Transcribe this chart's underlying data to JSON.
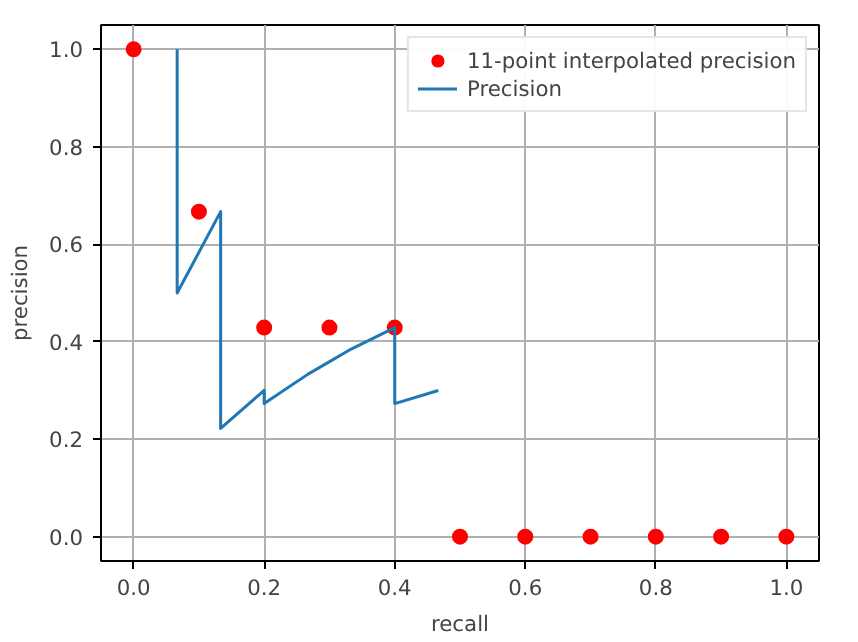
{
  "chart_data": {
    "type": "scatter",
    "xlabel": "recall",
    "ylabel": "precision",
    "series": [
      {
        "name": "11-point interpolated precision",
        "color": "#ff0000",
        "x": [
          0.0,
          0.1,
          0.2,
          0.3,
          0.4,
          0.5,
          0.6,
          0.7,
          0.8,
          0.9,
          1.0
        ],
        "values": [
          1.0,
          0.667,
          0.429,
          0.429,
          0.429,
          0,
          0,
          0,
          0,
          0,
          0
        ]
      },
      {
        "name": "Precision",
        "type": "line",
        "color": "#1f77b4",
        "x": [
          0.0667,
          0.0667,
          0.1333,
          0.1333,
          0.2,
          0.2,
          0.2667,
          0.3333,
          0.4,
          0.4,
          0.4667
        ],
        "values": [
          1.0,
          0.5,
          0.667,
          0.222,
          0.3,
          0.273,
          0.333,
          0.385,
          0.429,
          0.273,
          0.3
        ]
      }
    ],
    "xlim": [
      -0.05,
      1.05
    ],
    "ylim": [
      -0.05,
      1.05
    ],
    "xticks": [
      {
        "value": 0,
        "label": "0.0"
      },
      0.2,
      0.4,
      0.6,
      0.8,
      {
        "value": 1,
        "label": "1.0"
      }
    ],
    "yticks": [
      {
        "value": 0,
        "label": "0.0"
      },
      0.2,
      0.4,
      0.6,
      0.8,
      {
        "value": 1,
        "label": "1.0"
      }
    ],
    "grid": true,
    "legend": "top right"
  }
}
